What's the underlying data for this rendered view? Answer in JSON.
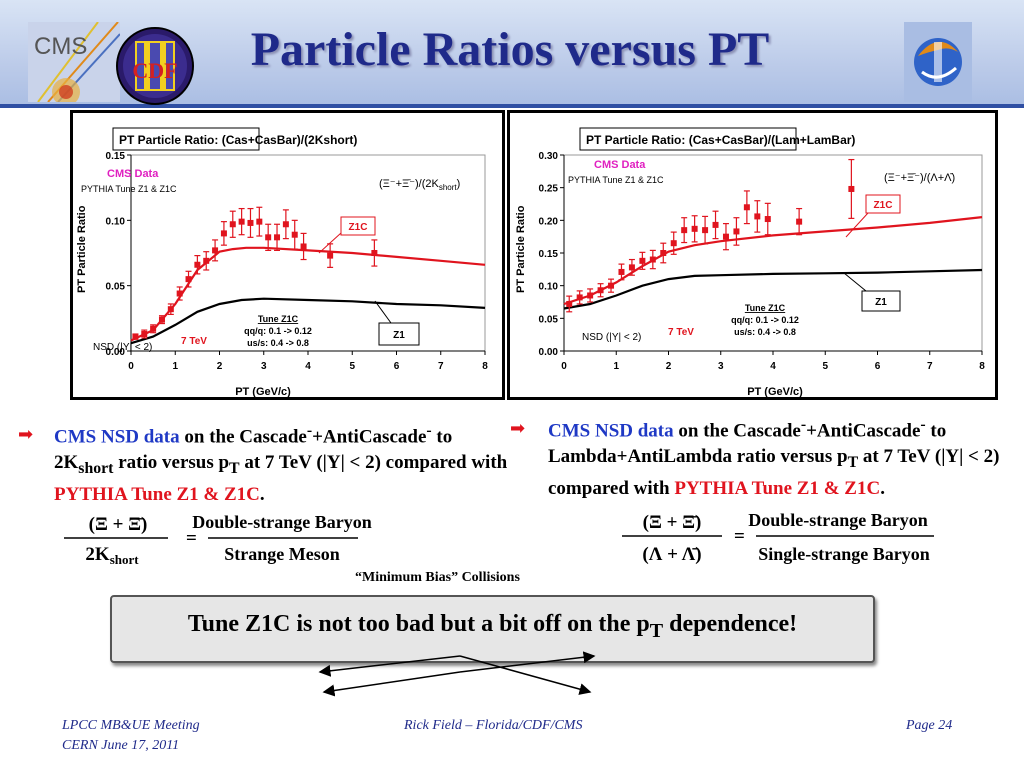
{
  "slide": {
    "title": "Particle Ratios versus PT",
    "logos": {
      "left1": "CMS",
      "left2": "CDF"
    }
  },
  "colors": {
    "title": "#1f2a8a",
    "red": "#e0141e",
    "blue": "#1f39c5",
    "pink": "#e020c0"
  },
  "chart_data": [
    {
      "type": "scatter",
      "title": "PT Particle Ratio: (Cas+CasBar)/(2Kshort)",
      "xlabel": "PT (GeV/c)",
      "ylabel": "PT Particle Ratio",
      "xlim": [
        0,
        8
      ],
      "ylim": [
        0,
        0.15
      ],
      "xticks": [
        "0",
        "1",
        "2",
        "3",
        "4",
        "5",
        "6",
        "7",
        "8"
      ],
      "yticks": [
        "0.00",
        "0.05",
        "0.10",
        "0.15"
      ],
      "yvals": [
        0,
        0.05,
        0.1,
        0.15
      ],
      "grid": false,
      "labels": {
        "cms_data": "CMS Data",
        "pythia": "PYTHIA Tune Z1 & Z1C",
        "ratio_main": "(Ξ⁻+Ξ̄⁻)/(2K",
        "ratio_sub": "short",
        "ratio_end": ")",
        "z1c": "Z1C",
        "z1": "Z1",
        "nsd": "NSD (|Y| < 2)",
        "energy": "7 TeV",
        "tune_title": "Tune Z1C",
        "tune_qq": "qq/q: 0.1 -> 0.12",
        "tune_us": "us/s: 0.4 -> 0.8"
      },
      "series": [
        {
          "name": "CMS Data",
          "points": [
            {
              "x": 0.1,
              "y": 0.011,
              "e": 0.002
            },
            {
              "x": 0.3,
              "y": 0.013,
              "e": 0.003
            },
            {
              "x": 0.5,
              "y": 0.017,
              "e": 0.003
            },
            {
              "x": 0.7,
              "y": 0.024,
              "e": 0.003
            },
            {
              "x": 0.9,
              "y": 0.032,
              "e": 0.004
            },
            {
              "x": 1.1,
              "y": 0.044,
              "e": 0.005
            },
            {
              "x": 1.3,
              "y": 0.055,
              "e": 0.006
            },
            {
              "x": 1.5,
              "y": 0.066,
              "e": 0.007
            },
            {
              "x": 1.7,
              "y": 0.069,
              "e": 0.007
            },
            {
              "x": 1.9,
              "y": 0.077,
              "e": 0.008
            },
            {
              "x": 2.1,
              "y": 0.09,
              "e": 0.009
            },
            {
              "x": 2.3,
              "y": 0.097,
              "e": 0.01
            },
            {
              "x": 2.5,
              "y": 0.099,
              "e": 0.01
            },
            {
              "x": 2.7,
              "y": 0.098,
              "e": 0.011
            },
            {
              "x": 2.9,
              "y": 0.099,
              "e": 0.011
            },
            {
              "x": 3.1,
              "y": 0.087,
              "e": 0.01
            },
            {
              "x": 3.3,
              "y": 0.087,
              "e": 0.01
            },
            {
              "x": 3.5,
              "y": 0.097,
              "e": 0.011
            },
            {
              "x": 3.7,
              "y": 0.089,
              "e": 0.011
            },
            {
              "x": 3.9,
              "y": 0.08,
              "e": 0.01
            },
            {
              "x": 4.5,
              "y": 0.073,
              "e": 0.009
            },
            {
              "x": 5.5,
              "y": 0.075,
              "e": 0.01
            }
          ]
        },
        {
          "name": "Z1C",
          "x": [
            0,
            0.5,
            1.0,
            1.5,
            2.0,
            2.3,
            2.6,
            3,
            4,
            5,
            6,
            7,
            8
          ],
          "y": [
            0.008,
            0.016,
            0.036,
            0.062,
            0.076,
            0.078,
            0.079,
            0.079,
            0.077,
            0.075,
            0.072,
            0.069,
            0.066
          ]
        },
        {
          "name": "Z1",
          "x": [
            0,
            0.5,
            1.0,
            1.5,
            2.0,
            2.5,
            3,
            4,
            5,
            6,
            7,
            8
          ],
          "y": [
            0.006,
            0.011,
            0.02,
            0.03,
            0.036,
            0.039,
            0.04,
            0.039,
            0.038,
            0.036,
            0.035,
            0.033
          ]
        }
      ]
    },
    {
      "type": "scatter",
      "title": "PT Particle Ratio: (Cas+CasBar)/(Lam+LamBar)",
      "xlabel": "PT (GeV/c)",
      "ylabel": "PT Particle Ratio",
      "xlim": [
        0,
        8
      ],
      "ylim": [
        0,
        0.3
      ],
      "xticks": [
        "0",
        "1",
        "2",
        "3",
        "4",
        "5",
        "6",
        "7",
        "8"
      ],
      "yticks": [
        "0.00",
        "0.05",
        "0.10",
        "0.15",
        "0.20",
        "0.25",
        "0.30"
      ],
      "yvals": [
        0,
        0.05,
        0.1,
        0.15,
        0.2,
        0.25,
        0.3
      ],
      "grid": false,
      "labels": {
        "cms_data": "CMS Data",
        "pythia": "PYTHIA Tune Z1 & Z1C",
        "ratio_main": "(Ξ⁻+Ξ̄⁻)/(Λ+Λ̄)",
        "z1c": "Z1C",
        "z1": "Z1",
        "nsd": "NSD (|Y| < 2)",
        "energy": "7 TeV",
        "tune_title": "Tune Z1C",
        "tune_qq": "qq/q: 0.1 -> 0.12",
        "tune_us": "us/s: 0.4 -> 0.8"
      },
      "series": [
        {
          "name": "CMS Data",
          "points": [
            {
              "x": 0.1,
              "y": 0.072,
              "e": 0.012
            },
            {
              "x": 0.3,
              "y": 0.082,
              "e": 0.01
            },
            {
              "x": 0.5,
              "y": 0.085,
              "e": 0.01
            },
            {
              "x": 0.7,
              "y": 0.093,
              "e": 0.01
            },
            {
              "x": 0.9,
              "y": 0.1,
              "e": 0.01
            },
            {
              "x": 1.1,
              "y": 0.121,
              "e": 0.012
            },
            {
              "x": 1.3,
              "y": 0.128,
              "e": 0.012
            },
            {
              "x": 1.5,
              "y": 0.138,
              "e": 0.013
            },
            {
              "x": 1.7,
              "y": 0.14,
              "e": 0.014
            },
            {
              "x": 1.9,
              "y": 0.15,
              "e": 0.015
            },
            {
              "x": 2.1,
              "y": 0.165,
              "e": 0.017
            },
            {
              "x": 2.3,
              "y": 0.185,
              "e": 0.019
            },
            {
              "x": 2.5,
              "y": 0.187,
              "e": 0.02
            },
            {
              "x": 2.7,
              "y": 0.185,
              "e": 0.021
            },
            {
              "x": 2.9,
              "y": 0.193,
              "e": 0.021
            },
            {
              "x": 3.1,
              "y": 0.175,
              "e": 0.02
            },
            {
              "x": 3.3,
              "y": 0.183,
              "e": 0.021
            },
            {
              "x": 3.5,
              "y": 0.22,
              "e": 0.025
            },
            {
              "x": 3.7,
              "y": 0.206,
              "e": 0.024
            },
            {
              "x": 3.9,
              "y": 0.202,
              "e": 0.024
            },
            {
              "x": 4.5,
              "y": 0.198,
              "e": 0.02
            },
            {
              "x": 5.5,
              "y": 0.248,
              "e": 0.045
            }
          ]
        },
        {
          "name": "Z1C",
          "x": [
            0,
            0.5,
            1.0,
            1.5,
            2.0,
            2.5,
            3,
            4,
            5,
            6,
            7,
            8
          ],
          "y": [
            0.072,
            0.085,
            0.105,
            0.13,
            0.152,
            0.162,
            0.168,
            0.177,
            0.183,
            0.189,
            0.196,
            0.205
          ]
        },
        {
          "name": "Z1",
          "x": [
            0,
            0.5,
            1.0,
            1.5,
            2.0,
            2.5,
            3,
            4,
            5,
            6,
            7,
            8
          ],
          "y": [
            0.065,
            0.072,
            0.085,
            0.1,
            0.11,
            0.115,
            0.116,
            0.118,
            0.119,
            0.12,
            0.122,
            0.124
          ]
        }
      ]
    }
  ],
  "captions": {
    "left": {
      "blue": "CMS NSD data",
      "t1": " on the Cascade",
      "sup1": "-",
      "t2": "+AntiCascade",
      "sup2": "-",
      "t3": " to 2K",
      "sub1": "short",
      "t4": " ratio versus p",
      "sub2": "T",
      "t5": " at 7 TeV (|Y| < 2) compared with ",
      "red": "PYTHIA Tune Z1 & Z1C",
      "end": "."
    },
    "right": {
      "blue": "CMS NSD data",
      "t1": " on the Cascade",
      "sup1": "-",
      "t2": "+AntiCascade",
      "sup2": "-",
      "t3": " to Lambda+AntiLambda ratio versus p",
      "sub1": "T",
      "t4": " at 7 TeV (|Y| < 2) compared with ",
      "red": "PYTHIA Tune Z1 & Z1C",
      "end": "."
    }
  },
  "formulas": {
    "left": {
      "num": "(Ξ + Ξ̄)",
      "den_main": "2K",
      "den_sub": "short",
      "eq": "=",
      "rnum": "Double-strange Baryon",
      "rden": "Strange Meson"
    },
    "right": {
      "num": "(Ξ + Ξ̄)",
      "den_main": "(Λ + Λ̄)",
      "eq": "=",
      "rnum": "Double-strange Baryon",
      "rden": "Single-strange Baryon"
    }
  },
  "minimum_bias": "“Minimum Bias” Collisions",
  "banner": {
    "t1": "Tune Z1C is not too bad but a bit off on the p",
    "sub": "T",
    "t2": " dependence!"
  },
  "footer": {
    "meeting": "LPCC MB&UE Meeting",
    "date": "CERN June 17, 2011",
    "author": "Rick Field – Florida/CDF/CMS",
    "page": "Page 24"
  }
}
